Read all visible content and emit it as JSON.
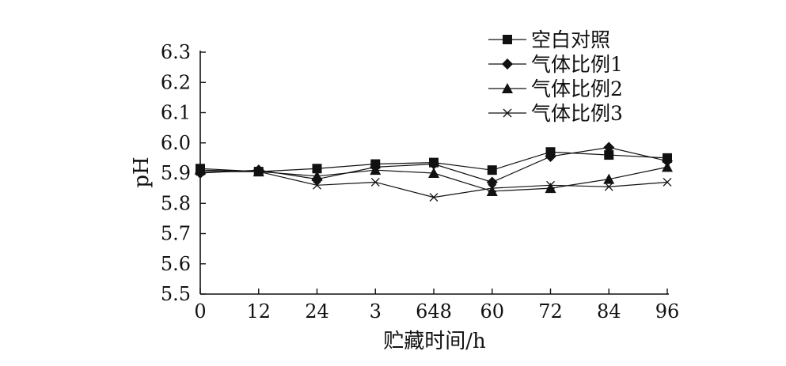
{
  "chart_data": {
    "type": "line",
    "title": "",
    "xlabel": "贮藏时间/h",
    "ylabel": "pH",
    "categories": [
      "0",
      "12",
      "24",
      "3",
      "648",
      "60",
      "72",
      "84",
      "96"
    ],
    "ylim": [
      5.5,
      6.3
    ],
    "yticks": [
      "5.5",
      "5.6",
      "5.7",
      "5.8",
      "5.9",
      "6.0",
      "6.1",
      "6.2",
      "6.3"
    ],
    "grid": false,
    "legend_position": "top-right",
    "series": [
      {
        "name": "空白对照",
        "marker": "square",
        "values": [
          5.915,
          5.905,
          5.915,
          5.93,
          5.935,
          5.91,
          5.97,
          5.96,
          5.95
        ]
      },
      {
        "name": "气体比例1",
        "marker": "diamond",
        "values": [
          5.9,
          5.91,
          5.88,
          5.92,
          5.93,
          5.87,
          5.955,
          5.985,
          5.94
        ]
      },
      {
        "name": "气体比例2",
        "marker": "triangle",
        "values": [
          5.91,
          5.905,
          5.89,
          5.91,
          5.9,
          5.84,
          5.85,
          5.88,
          5.92
        ]
      },
      {
        "name": "气体比例3",
        "marker": "x",
        "values": [
          5.905,
          5.905,
          5.86,
          5.87,
          5.82,
          5.85,
          5.86,
          5.855,
          5.87
        ]
      }
    ]
  }
}
